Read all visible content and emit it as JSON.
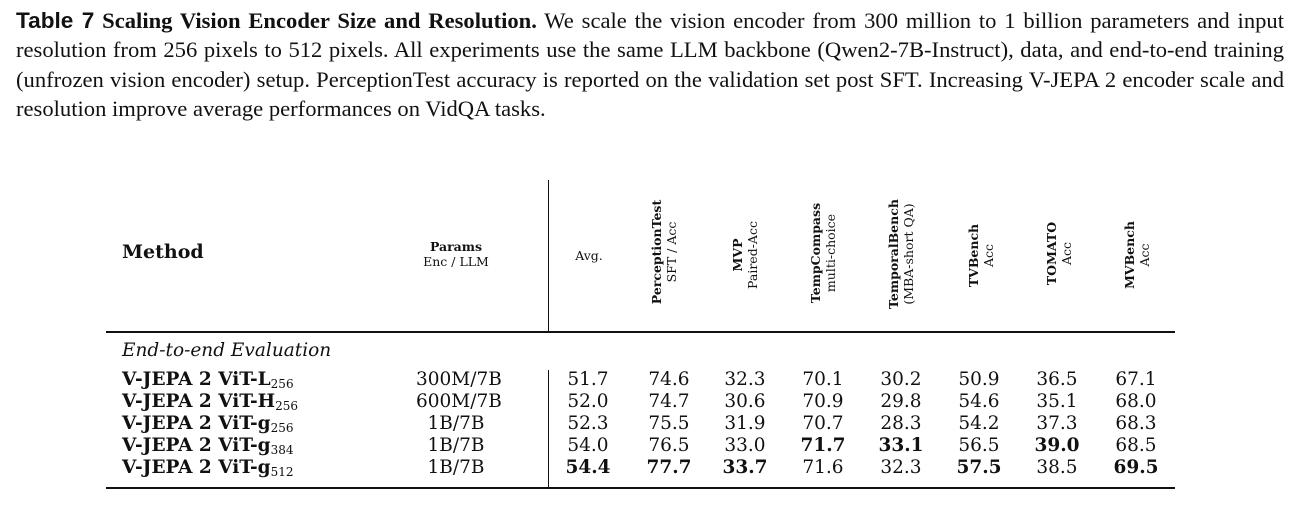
{
  "caption": {
    "label": "Table 7",
    "title": "Scaling Vision Encoder Size and Resolution.",
    "text": "We scale the vision encoder from 300 million to 1 billion parameters and input resolution from 256 pixels to 512 pixels. All experiments use the same LLM backbone (Qwen2-7B-Instruct), data, and end-to-end training (unfrozen vision encoder) setup. PerceptionTest accuracy is reported on the validation set post SFT. Increasing V-JEPA 2 encoder scale and resolution improve average performances on VidQA tasks."
  },
  "header": {
    "method": "Method",
    "params_title": "Params",
    "params_sub": "Enc / LLM",
    "avg": "Avg.",
    "benchmarks": [
      {
        "name": "PerceptionTest",
        "sub": "SFT / Acc"
      },
      {
        "name": "MVP",
        "sub": "Paired-Acc"
      },
      {
        "name": "TempCompass",
        "sub": "multi-choice"
      },
      {
        "name": "TemporalBench",
        "sub": "(MBA-short QA)"
      },
      {
        "name": "TVBench",
        "sub": "Acc"
      },
      {
        "name": "TOMATO",
        "sub": "Acc"
      },
      {
        "name": "MVBench",
        "sub": "Acc"
      }
    ]
  },
  "section": "End-to-end Evaluation",
  "rows": [
    {
      "method": "V-JEPA 2 ViT-L",
      "res": "256",
      "params": "300M/7B",
      "values": [
        "51.7",
        "74.6",
        "32.3",
        "70.1",
        "30.2",
        "50.9",
        "36.5",
        "67.1"
      ]
    },
    {
      "method": "V-JEPA 2 ViT-H",
      "res": "256",
      "params": "600M/7B",
      "values": [
        "52.0",
        "74.7",
        "30.6",
        "70.9",
        "29.8",
        "54.6",
        "35.1",
        "68.0"
      ]
    },
    {
      "method": "V-JEPA 2 ViT-g",
      "res": "256",
      "params": "1B/7B",
      "values": [
        "52.3",
        "75.5",
        "31.9",
        "70.7",
        "28.3",
        "54.2",
        "37.3",
        "68.3"
      ]
    },
    {
      "method": "V-JEPA 2 ViT-g",
      "res": "384",
      "params": "1B/7B",
      "values": [
        "54.0",
        "76.5",
        "33.0",
        "71.7",
        "33.1",
        "56.5",
        "39.0",
        "68.5"
      ]
    },
    {
      "method": "V-JEPA 2 ViT-g",
      "res": "512",
      "params": "1B/7B",
      "values": [
        "54.4",
        "77.7",
        "33.7",
        "71.6",
        "32.3",
        "57.5",
        "38.5",
        "69.5"
      ]
    }
  ],
  "bold_cells": [
    [
      3,
      3
    ],
    [
      3,
      4
    ],
    [
      3,
      6
    ],
    [
      4,
      0
    ],
    [
      4,
      1
    ],
    [
      4,
      2
    ],
    [
      4,
      5
    ],
    [
      4,
      7
    ]
  ]
}
